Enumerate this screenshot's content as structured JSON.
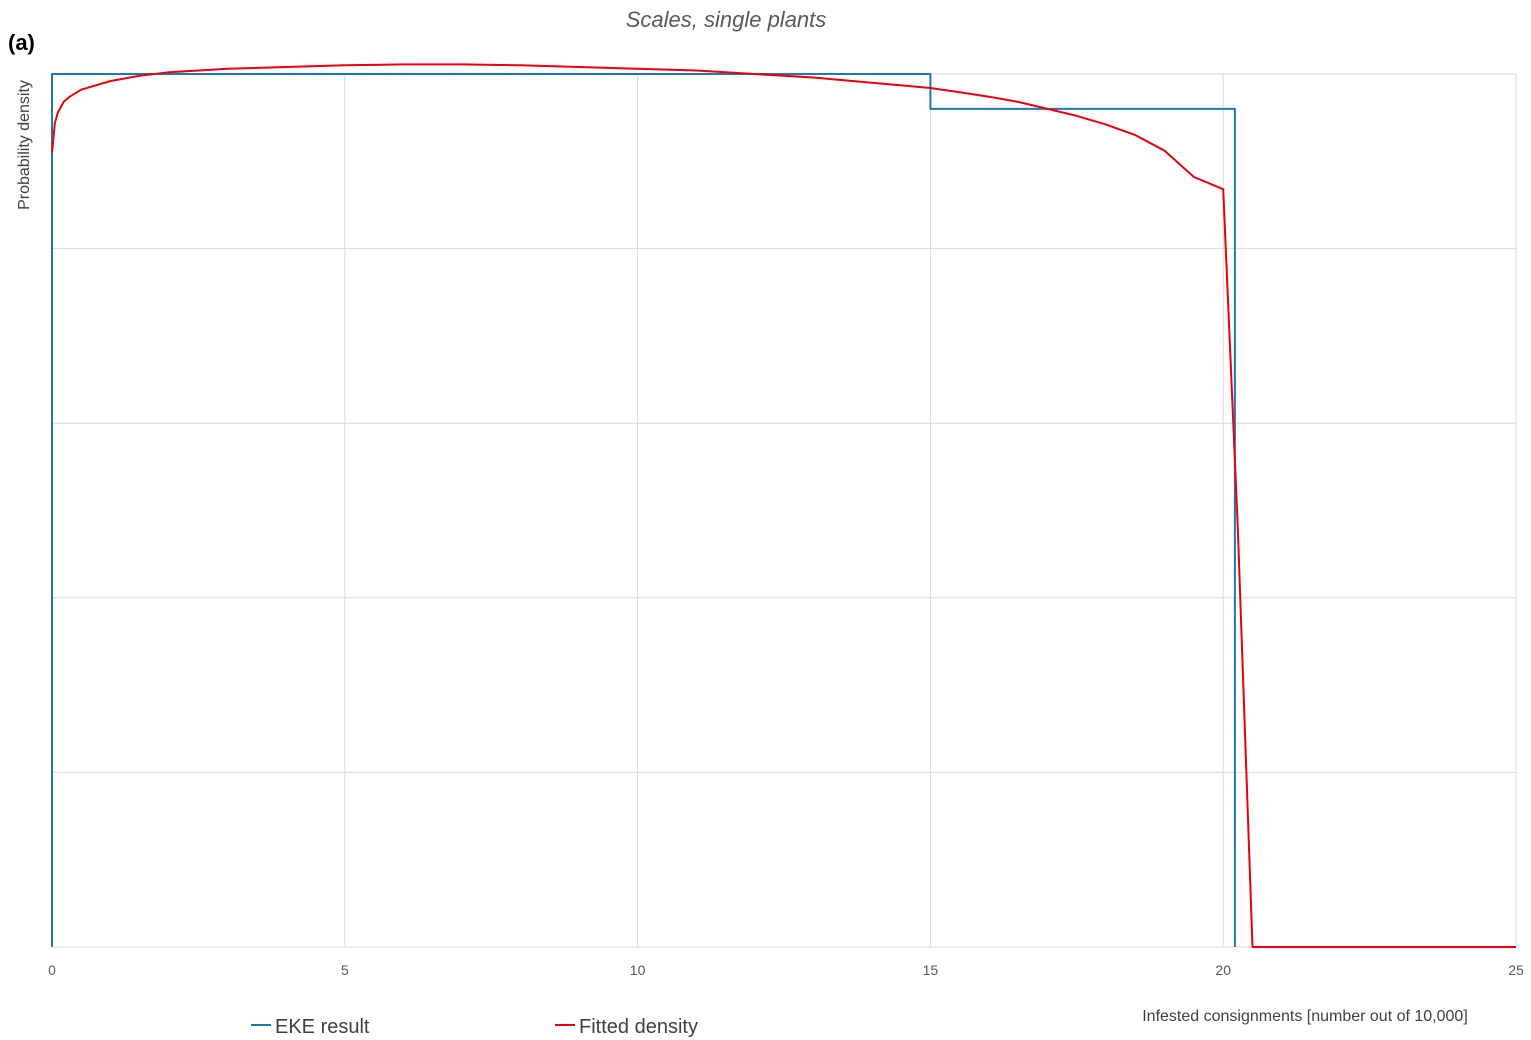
{
  "chart_data": {
    "type": "line",
    "panel_label": "(a)",
    "title": "Scales,  single plants",
    "xlabel": "Infested consignments [number out of 10,000]",
    "ylabel": "Probability density",
    "xlim": [
      0,
      25
    ],
    "ylim": [
      0,
      5
    ],
    "x_ticks": [
      "0",
      "5",
      "10",
      "15",
      "20",
      "25"
    ],
    "grid": true,
    "legend_position": "bottom",
    "series": [
      {
        "name": "EKE result",
        "color": "#1f77b4",
        "style": "step",
        "x": [
          0,
          0,
          15,
          15,
          20.2,
          20.2
        ],
        "y": [
          0,
          5.0,
          5.0,
          4.8,
          4.8,
          0
        ]
      },
      {
        "name": "Fitted density",
        "color": "#e8000b",
        "style": "line",
        "x": [
          0,
          0.05,
          0.1,
          0.2,
          0.3,
          0.5,
          0.7,
          1,
          1.5,
          2,
          3,
          4,
          5,
          6,
          7,
          8,
          9,
          10,
          11,
          12,
          13,
          14,
          15,
          15.5,
          16,
          16.5,
          17,
          17.5,
          18,
          18.5,
          19,
          19.5,
          20,
          20.25,
          20.5,
          21,
          22,
          23,
          24,
          25
        ],
        "y": [
          4.55,
          4.72,
          4.78,
          4.84,
          4.87,
          4.91,
          4.93,
          4.96,
          4.99,
          5.01,
          5.03,
          5.04,
          5.05,
          5.055,
          5.055,
          5.05,
          5.04,
          5.03,
          5.02,
          5.0,
          4.98,
          4.95,
          4.92,
          4.895,
          4.87,
          4.84,
          4.8,
          4.76,
          4.71,
          4.65,
          4.56,
          4.41,
          4.34,
          2.4,
          0,
          0,
          0,
          0,
          0,
          0
        ]
      }
    ]
  }
}
